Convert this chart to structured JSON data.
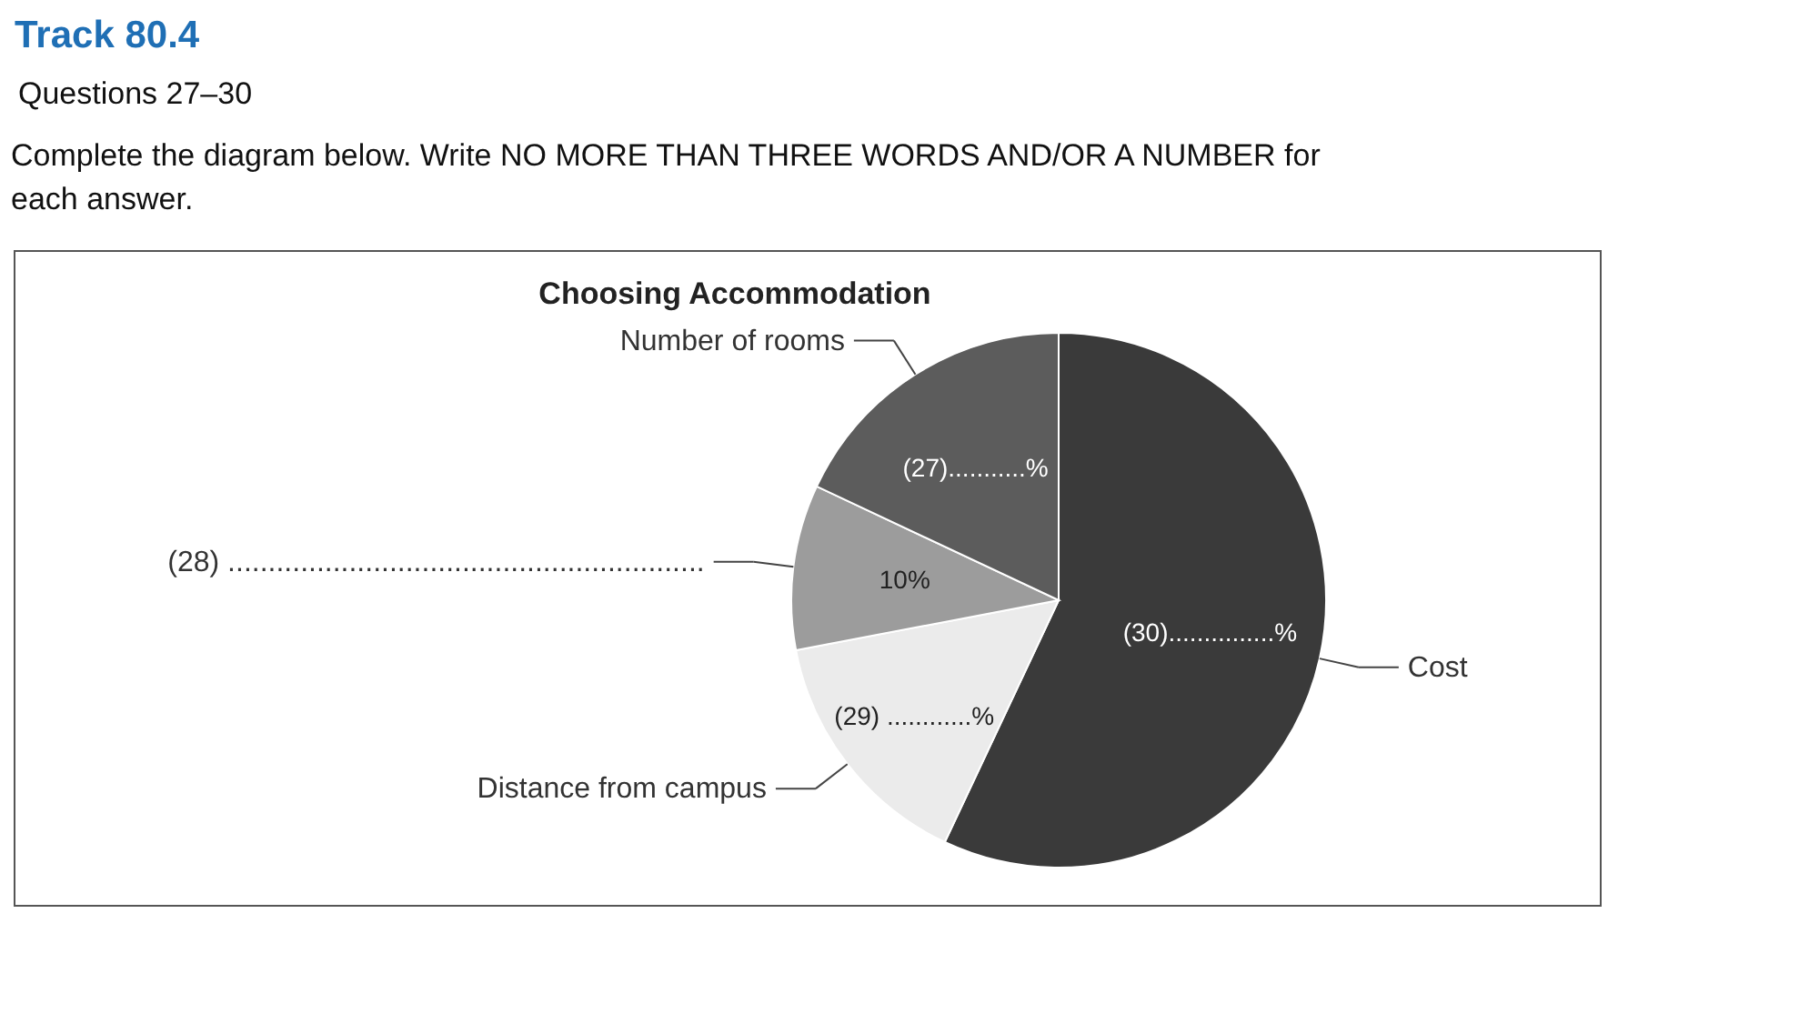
{
  "chart_data": {
    "type": "pie",
    "title": "Choosing Accommodation",
    "categories": [
      "Cost",
      "Distance from campus",
      "(28) ...........................................................",
      "Number of rooms"
    ],
    "values": [
      57,
      15,
      10,
      18
    ],
    "colors": [
      "#3a3a3a",
      "#ebebeb",
      "#9c9c9c",
      "#5c5c5c"
    ],
    "value_labels": [
      null,
      null,
      "10%",
      null
    ],
    "annotations": [
      "Track 80.4",
      "Questions 27–30",
      "Complete the diagram below. Write NO MORE THAN THREE WORDS AND/OR A NUMBER for each answer.",
      {
        "text": "(30)...............%",
        "x": "Cost"
      },
      {
        "text": "(29) ............%",
        "x": "Distance from campus"
      },
      {
        "text": "(27)...........%",
        "x": "Number of rooms"
      }
    ]
  }
}
